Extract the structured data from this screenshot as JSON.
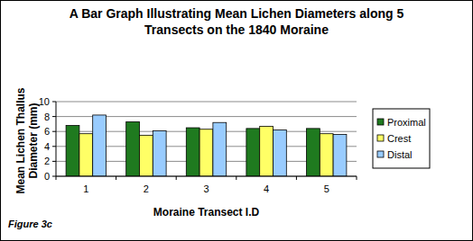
{
  "chart_data": {
    "type": "bar",
    "title": "A Bar Graph Illustrating Mean Lichen Diameters along 5 Transects on the 1840 Moraine",
    "x_label": "Moraine Transect I.D",
    "y_label": "Mean Lichen Thallus Diameter (mm)",
    "annotations": [
      "Figure 3c"
    ],
    "categories": [
      "1",
      "2",
      "3",
      "4",
      "5"
    ],
    "series": [
      {
        "name": "Proximal",
        "color": "#1f7a1f",
        "values": [
          6.8,
          7.3,
          6.5,
          6.4,
          6.4
        ]
      },
      {
        "name": "Crest",
        "color": "#ffff66",
        "values": [
          5.7,
          5.5,
          6.3,
          6.7,
          5.7
        ]
      },
      {
        "name": "Distal",
        "color": "#99ccff",
        "values": [
          8.2,
          6.1,
          7.2,
          6.2,
          5.6
        ]
      }
    ],
    "ylim": [
      0,
      10
    ],
    "yticks": [
      0,
      2,
      4,
      6,
      8,
      10
    ],
    "grid": true,
    "legend": "right"
  }
}
